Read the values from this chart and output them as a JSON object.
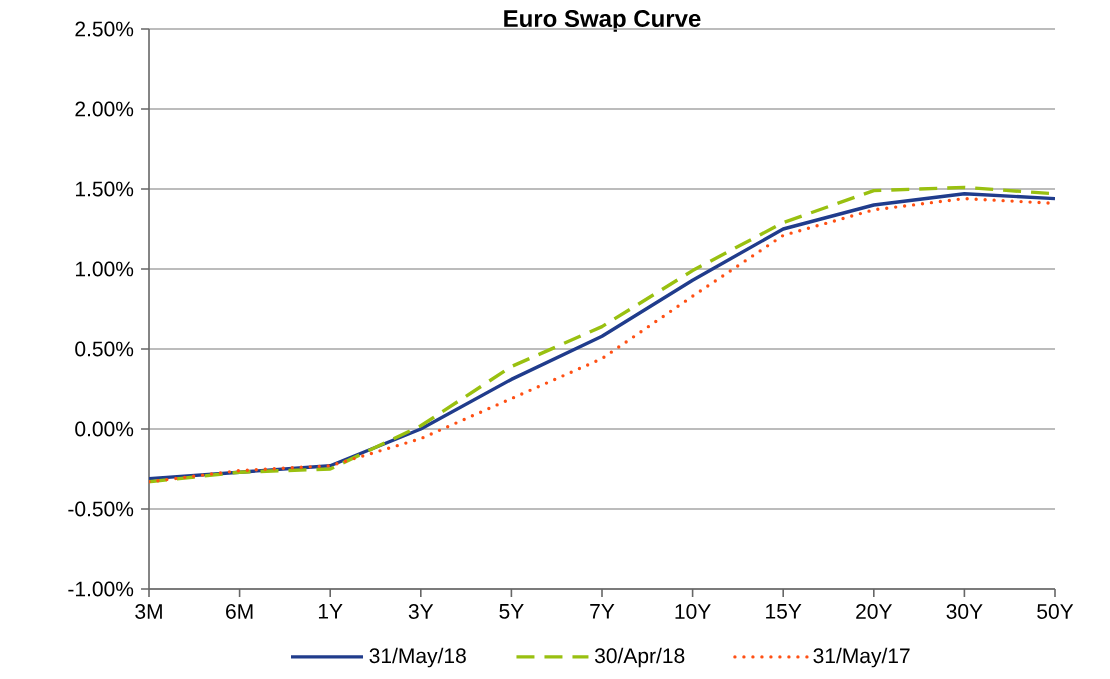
{
  "chart_data": {
    "type": "line",
    "title": "Euro Swap Curve",
    "categories": [
      "3M",
      "6M",
      "1Y",
      "3Y",
      "5Y",
      "7Y",
      "10Y",
      "15Y",
      "20Y",
      "30Y",
      "50Y"
    ],
    "series": [
      {
        "name": "31/May/18",
        "color": "#203c8c",
        "line_style": "solid",
        "values": [
          -0.31,
          -0.27,
          -0.23,
          0.0,
          0.31,
          0.58,
          0.93,
          1.25,
          1.4,
          1.47,
          1.44
        ]
      },
      {
        "name": "30/Apr/18",
        "color": "#99c010",
        "line_style": "dashed",
        "values": [
          -0.33,
          -0.27,
          -0.25,
          0.02,
          0.39,
          0.64,
          0.99,
          1.29,
          1.49,
          1.51,
          1.47
        ]
      },
      {
        "name": "31/May/17",
        "color": "#ff5014",
        "line_style": "dotted",
        "values": [
          -0.33,
          -0.26,
          -0.23,
          -0.06,
          0.19,
          0.44,
          0.83,
          1.21,
          1.37,
          1.44,
          1.41
        ]
      }
    ],
    "ylim": [
      -1.0,
      2.5
    ],
    "yticks": [
      {
        "value": -1.0,
        "label": "-1.00%"
      },
      {
        "value": -0.5,
        "label": "-0.50%"
      },
      {
        "value": 0.0,
        "label": "0.00%"
      },
      {
        "value": 0.5,
        "label": "0.50%"
      },
      {
        "value": 1.0,
        "label": "1.00%"
      },
      {
        "value": 1.5,
        "label": "1.50%"
      },
      {
        "value": 2.0,
        "label": "2.00%"
      },
      {
        "value": 2.5,
        "label": "2.50%"
      }
    ],
    "grid": "y",
    "legend": "bottom",
    "marker": "none"
  }
}
